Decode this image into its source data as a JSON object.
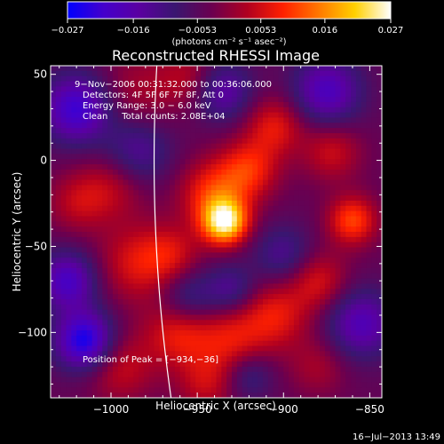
{
  "chart_data": {
    "type": "heatmap",
    "title": "Reconstructed RHESSI Image",
    "xlabel": "Heliocentric X (arcsec)",
    "ylabel": "Heliocentric Y (arcsec)",
    "xlim": [
      -1035,
      -843
    ],
    "ylim": [
      -138,
      55
    ],
    "x_ticks": [
      {
        "value": -1000,
        "label": "−1000"
      },
      {
        "value": -950,
        "label": "−950"
      },
      {
        "value": -900,
        "label": "−900"
      },
      {
        "value": -850,
        "label": "−850"
      }
    ],
    "y_ticks": [
      {
        "value": 50,
        "label": "50"
      },
      {
        "value": 0,
        "label": "0"
      },
      {
        "value": -50,
        "label": "−50"
      },
      {
        "value": -100,
        "label": "−100"
      }
    ],
    "colorbar": {
      "unit_label": "(photons cm⁻² s⁻¹ asec⁻²)",
      "range": [
        -0.027,
        0.027
      ],
      "ticks": [
        {
          "value": -0.027,
          "label": "−0.027"
        },
        {
          "value": -0.016,
          "label": "−0.016"
        },
        {
          "value": -0.0053,
          "label": "−0.0053"
        },
        {
          "value": 0.0053,
          "label": "0.0053"
        },
        {
          "value": 0.016,
          "label": "0.016"
        },
        {
          "value": 0.027,
          "label": "0.027"
        }
      ],
      "colors": [
        "#0000ff",
        "#4400cc",
        "#5a00a0",
        "#3a1670",
        "#6a0050",
        "#b00020",
        "#ff2000",
        "#ff7800",
        "#ffd000",
        "#ffffff"
      ]
    },
    "annotations": [
      "9−Nov−2006 00:31:32.000 to 00:36:06.000",
      "Detectors: 4F 5F 6F 7F 8F, Att 0",
      "Energy Range: 3.0 − 6.0 keV",
      "Clean     Total counts: 2.08E+04"
    ],
    "peak_label": "Position of Peak = [−934,−36]",
    "peak": {
      "x": -934,
      "y": -36
    },
    "features": [
      {
        "x": -934,
        "y": -36,
        "v": 0.027,
        "s": 9
      },
      {
        "x": -940,
        "y": -20,
        "v": 0.014,
        "s": 14
      },
      {
        "x": -920,
        "y": -5,
        "v": 0.012,
        "s": 12
      },
      {
        "x": -905,
        "y": 20,
        "v": 0.011,
        "s": 12
      },
      {
        "x": -985,
        "y": 40,
        "v": 0.006,
        "s": 16
      },
      {
        "x": -955,
        "y": 48,
        "v": 0.007,
        "s": 12
      },
      {
        "x": -1000,
        "y": -15,
        "v": 0.008,
        "s": 14
      },
      {
        "x": -1020,
        "y": -25,
        "v": 0.007,
        "s": 12
      },
      {
        "x": -985,
        "y": -60,
        "v": 0.01,
        "s": 16
      },
      {
        "x": -965,
        "y": -55,
        "v": 0.008,
        "s": 12
      },
      {
        "x": -960,
        "y": -100,
        "v": 0.012,
        "s": 14
      },
      {
        "x": -930,
        "y": -105,
        "v": 0.01,
        "s": 14
      },
      {
        "x": -905,
        "y": -90,
        "v": 0.011,
        "s": 14
      },
      {
        "x": -880,
        "y": -70,
        "v": 0.01,
        "s": 12
      },
      {
        "x": -860,
        "y": -35,
        "v": 0.015,
        "s": 10
      },
      {
        "x": -872,
        "y": 5,
        "v": 0.009,
        "s": 12
      },
      {
        "x": -995,
        "y": -120,
        "v": 0.009,
        "s": 14
      },
      {
        "x": -945,
        "y": -130,
        "v": 0.008,
        "s": 12
      },
      {
        "x": -880,
        "y": -120,
        "v": 0.006,
        "s": 12
      },
      {
        "x": -1020,
        "y": 30,
        "v": -0.018,
        "s": 14
      },
      {
        "x": -1015,
        "y": -105,
        "v": -0.022,
        "s": 12
      },
      {
        "x": -1025,
        "y": -70,
        "v": -0.016,
        "s": 12
      },
      {
        "x": -935,
        "y": 40,
        "v": -0.012,
        "s": 12
      },
      {
        "x": -955,
        "y": -80,
        "v": -0.01,
        "s": 12
      },
      {
        "x": -930,
        "y": -75,
        "v": -0.009,
        "s": 10
      },
      {
        "x": -985,
        "y": 5,
        "v": -0.01,
        "s": 14
      },
      {
        "x": -900,
        "y": -55,
        "v": -0.009,
        "s": 12
      },
      {
        "x": -875,
        "y": 40,
        "v": -0.015,
        "s": 14
      },
      {
        "x": -855,
        "y": -95,
        "v": -0.014,
        "s": 14
      },
      {
        "x": -920,
        "y": -125,
        "v": -0.008,
        "s": 10
      }
    ]
  },
  "footer": {
    "timestamp": "16−Jul−2013 13:49"
  }
}
